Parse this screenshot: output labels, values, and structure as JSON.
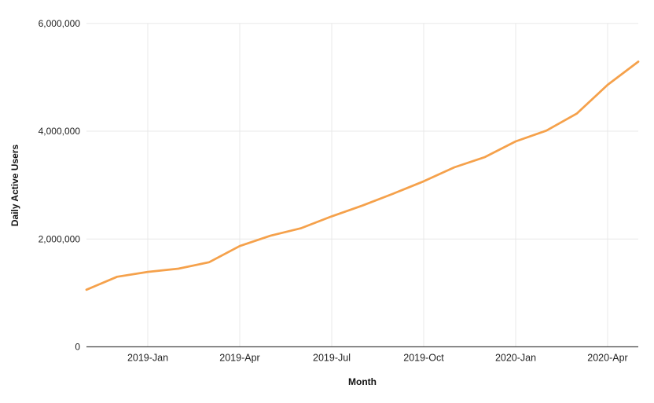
{
  "chart_data": {
    "type": "line",
    "title": "",
    "xlabel": "Month",
    "ylabel": "Daily Active Users",
    "categories": [
      "2018-Nov",
      "2018-Dec",
      "2019-Jan",
      "2019-Feb",
      "2019-Mar",
      "2019-Apr",
      "2019-May",
      "2019-Jun",
      "2019-Jul",
      "2019-Aug",
      "2019-Sep",
      "2019-Oct",
      "2019-Nov",
      "2019-Dec",
      "2020-Jan",
      "2020-Feb",
      "2020-Mar",
      "2020-Apr",
      "2020-May"
    ],
    "values": [
      1060000,
      1300000,
      1390000,
      1450000,
      1570000,
      1870000,
      2060000,
      2200000,
      2420000,
      2620000,
      2840000,
      3070000,
      3330000,
      3520000,
      3810000,
      4010000,
      4330000,
      4860000,
      5290000
    ],
    "ylim": [
      0,
      6000000
    ],
    "grid": true,
    "legend": false,
    "x_ticks": [
      {
        "label": "2019-Jan",
        "index": 2
      },
      {
        "label": "2019-Apr",
        "index": 5
      },
      {
        "label": "2019-Jul",
        "index": 8
      },
      {
        "label": "2019-Oct",
        "index": 11
      },
      {
        "label": "2020-Jan",
        "index": 14
      },
      {
        "label": "2020-Apr",
        "index": 17
      }
    ],
    "y_ticks": [
      {
        "label": "0",
        "value": 0
      },
      {
        "label": "2,000,000",
        "value": 2000000
      },
      {
        "label": "4,000,000",
        "value": 4000000
      },
      {
        "label": "6,000,000",
        "value": 6000000
      }
    ],
    "colors": {
      "line": "#F5A14B",
      "grid": "#E8E8E8",
      "axis": "#454545",
      "tick_text": "#1F1F1F",
      "title_text": "#111111",
      "background": "#FFFFFF"
    }
  }
}
